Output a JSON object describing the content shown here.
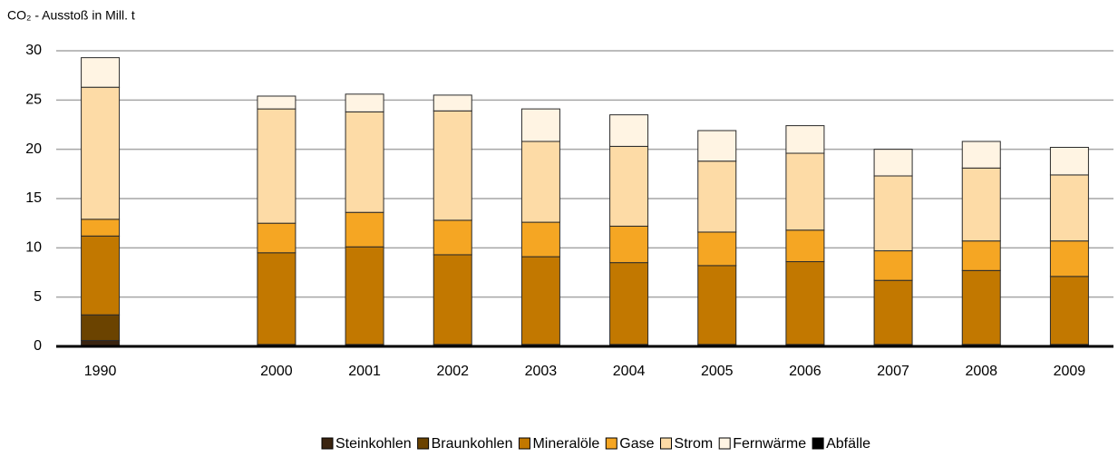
{
  "chart_data": {
    "type": "bar",
    "stacked": true,
    "title": "CO₂ - Ausstoß in Mill. t",
    "categories": [
      "1990",
      null,
      "2000",
      "2001",
      "2002",
      "2003",
      "2004",
      "2005",
      "2006",
      "2007",
      "2008",
      "2009"
    ],
    "series": [
      {
        "name": "Steinkohlen",
        "color": "#3a2410",
        "values": [
          0.6,
          null,
          0.2,
          0.2,
          0.2,
          0.2,
          0.2,
          0.2,
          0.2,
          0.2,
          0.2,
          0.2
        ]
      },
      {
        "name": "Braunkohlen",
        "color": "#6b4300",
        "values": [
          2.6,
          null,
          0,
          0,
          0,
          0,
          0,
          0,
          0,
          0,
          0,
          0
        ]
      },
      {
        "name": "Mineralöle",
        "color": "#c27800",
        "values": [
          8.0,
          null,
          9.3,
          9.9,
          9.1,
          8.9,
          8.3,
          8.0,
          8.4,
          6.5,
          7.5,
          6.9
        ]
      },
      {
        "name": "Gase",
        "color": "#f5a623",
        "values": [
          1.7,
          null,
          3.0,
          3.5,
          3.5,
          3.5,
          3.7,
          3.4,
          3.2,
          3.0,
          3.0,
          3.6
        ]
      },
      {
        "name": "Strom",
        "color": "#fddba6",
        "values": [
          13.4,
          null,
          11.6,
          10.2,
          11.1,
          8.2,
          8.1,
          7.2,
          7.8,
          7.6,
          7.4,
          6.7
        ]
      },
      {
        "name": "Fernwärme",
        "color": "#fff4e3",
        "values": [
          3.0,
          null,
          1.3,
          1.8,
          1.6,
          3.3,
          3.2,
          3.1,
          2.8,
          2.7,
          2.7,
          2.8
        ]
      },
      {
        "name": "Abfälle",
        "color": "#000000",
        "values": [
          0,
          null,
          0,
          0,
          0,
          0,
          0,
          0,
          0,
          0,
          0,
          0
        ]
      }
    ],
    "ylim": [
      0,
      30
    ],
    "yticks": [
      0,
      5,
      10,
      15,
      20,
      25,
      30
    ],
    "grid": true,
    "legend": "bottom"
  }
}
